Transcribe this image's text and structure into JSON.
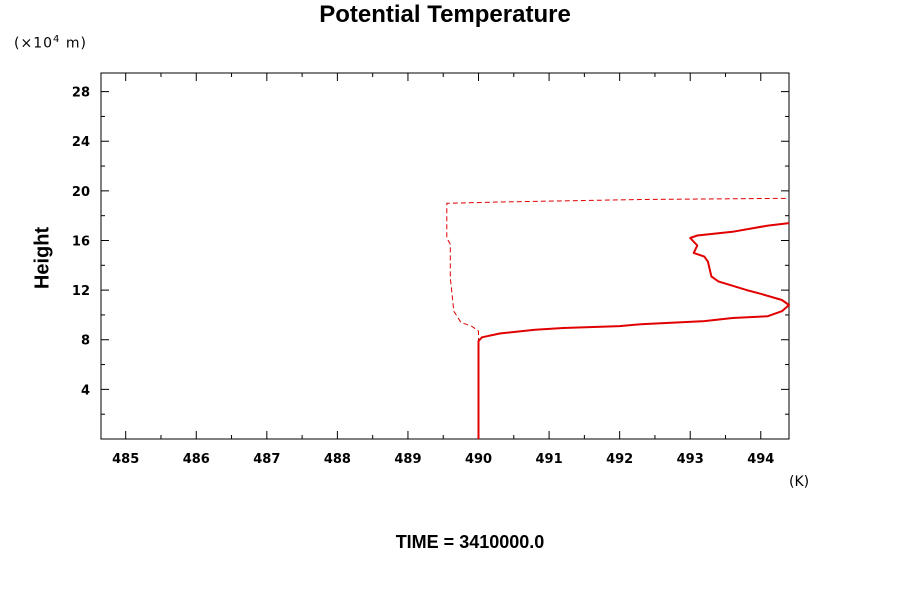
{
  "chart_data": {
    "type": "line",
    "title": "Potential Temperature",
    "ylabel": "Height",
    "yunit_prefix": "(×10",
    "yunit_exp": "4",
    "yunit_suffix": " m)",
    "xunit": "(K)",
    "xlim": [
      484.65,
      494.4
    ],
    "ylim": [
      0,
      29.5
    ],
    "xticks": [
      485,
      486,
      487,
      488,
      489,
      490,
      491,
      492,
      493,
      494
    ],
    "yticks": [
      4,
      8,
      12,
      16,
      20,
      24,
      28
    ],
    "grid": false,
    "legend": "none",
    "series": [
      {
        "style": "solid",
        "color": "#e00000",
        "points": [
          [
            490.0,
            0.0
          ],
          [
            490.0,
            7.9
          ],
          [
            490.05,
            8.2
          ],
          [
            490.3,
            8.5
          ],
          [
            490.8,
            8.8
          ],
          [
            491.2,
            8.95
          ],
          [
            492.0,
            9.1
          ],
          [
            492.3,
            9.25
          ],
          [
            493.2,
            9.5
          ],
          [
            493.6,
            9.75
          ],
          [
            494.1,
            9.9
          ],
          [
            494.3,
            10.3
          ],
          [
            494.4,
            10.8
          ],
          [
            494.3,
            11.2
          ],
          [
            494.0,
            11.7
          ],
          [
            493.8,
            12.0
          ],
          [
            493.4,
            12.7
          ],
          [
            493.3,
            13.1
          ],
          [
            493.25,
            14.3
          ],
          [
            493.2,
            14.7
          ],
          [
            493.05,
            15.0
          ],
          [
            493.1,
            15.6
          ],
          [
            493.0,
            16.2
          ],
          [
            493.1,
            16.4
          ],
          [
            493.6,
            16.7
          ],
          [
            494.1,
            17.2
          ],
          [
            494.4,
            17.4
          ]
        ]
      },
      {
        "style": "dashed",
        "color": "#e00000",
        "points": [
          [
            490.0,
            0.0
          ],
          [
            490.0,
            7.9
          ],
          [
            490.0,
            8.7
          ],
          [
            489.9,
            9.1
          ],
          [
            489.75,
            9.4
          ],
          [
            489.65,
            10.3
          ],
          [
            489.6,
            13.0
          ],
          [
            489.6,
            15.7
          ],
          [
            489.55,
            16.2
          ],
          [
            489.55,
            18.0
          ],
          [
            489.55,
            19.0
          ],
          [
            490.3,
            19.1
          ],
          [
            492.3,
            19.3
          ],
          [
            494.4,
            19.4
          ]
        ]
      }
    ]
  },
  "footer": {
    "time_label": "TIME = 3410000.0"
  }
}
